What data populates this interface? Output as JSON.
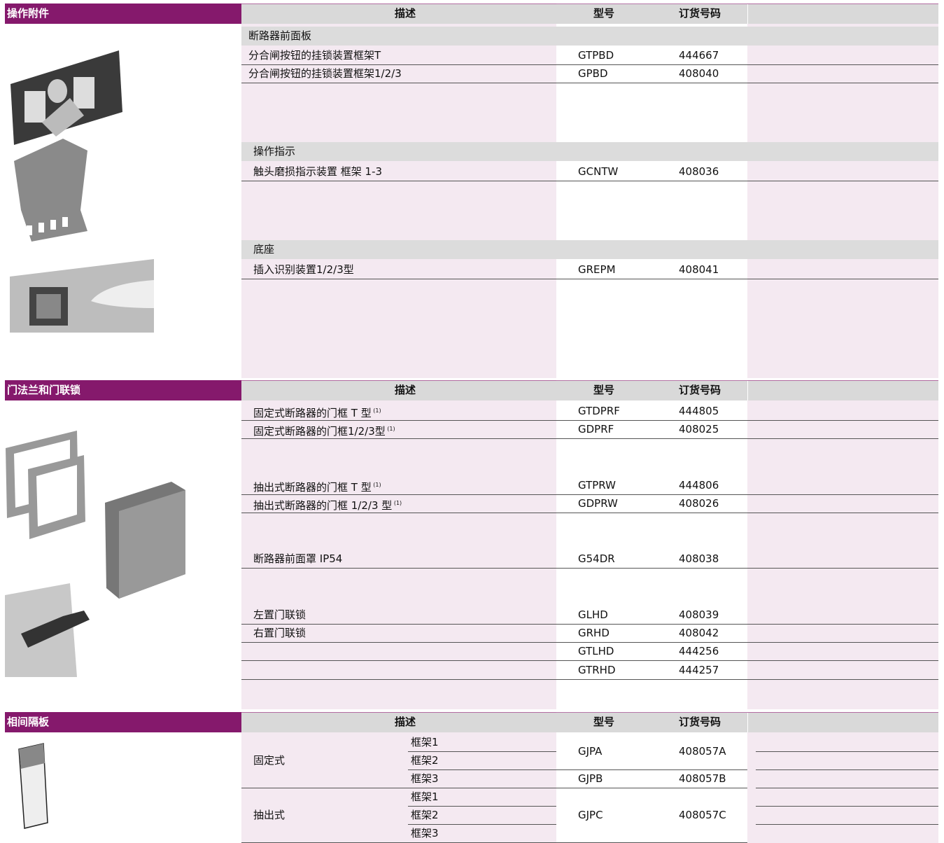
{
  "sections": [
    {
      "title": "操作附件",
      "header": {
        "description": "描述",
        "model": "型号",
        "order_no": "订货号码"
      },
      "groups": [
        {
          "name": "断路器前面板",
          "rows": [
            {
              "description": "分合闸按钮的挂锁装置框架T",
              "model": "GTPBD",
              "order_no": "444667"
            },
            {
              "description": "分合闸按钮的挂锁装置框架1/2/3",
              "model": "GPBD",
              "order_no": "408040"
            }
          ]
        },
        {
          "name": "操作指示",
          "rows": [
            {
              "description": "触头磨损指示装置 框架 1-3",
              "model": "GCNTW",
              "order_no": "408036"
            }
          ]
        },
        {
          "name": "底座",
          "rows": [
            {
              "description": "插入识别装置1/2/3型",
              "model": "GREPM",
              "order_no": "408041"
            }
          ]
        }
      ]
    },
    {
      "title": "门法兰和门联锁",
      "header": {
        "description": "描述",
        "model": "型号",
        "order_no": "订货号码"
      },
      "rows": [
        {
          "description": "固定式断路器的门框 T 型",
          "note": "(1)",
          "model": "GTDPRF",
          "order_no": "444805"
        },
        {
          "description": "固定式断路器的门框1/2/3型",
          "note": "(1)",
          "model": "GDPRF",
          "order_no": "408025"
        },
        {
          "description": "抽出式断路器的门框 T 型",
          "note": "(1)",
          "model": "GTPRW",
          "order_no": "444806"
        },
        {
          "description": "抽出式断路器的门框 1/2/3 型",
          "note": "(1)",
          "model": "GDPRW",
          "order_no": "408026"
        },
        {
          "description": "断路器前面罩 IP54",
          "model": "G54DR",
          "order_no": "408038"
        },
        {
          "description": "左置门联锁",
          "model": "GLHD",
          "order_no": "408039"
        },
        {
          "description": "右置门联锁",
          "model": "GRHD",
          "order_no": "408042"
        },
        {
          "model": "GTLHD",
          "order_no": "444256"
        },
        {
          "model": "GTRHD",
          "order_no": "444257"
        }
      ]
    },
    {
      "title": "相间隔板",
      "header": {
        "description": "描述",
        "model": "型号",
        "order_no": "订货号码"
      },
      "groups": [
        {
          "name": "固定式",
          "frames": [
            "框架1",
            "框架2",
            "框架3"
          ],
          "items": [
            {
              "model": "GJPA",
              "order_no": "408057A"
            },
            {
              "model": "GJPB",
              "order_no": "408057B"
            }
          ]
        },
        {
          "name": "抽出式",
          "frames": [
            "框架1",
            "框架2",
            "框架3"
          ],
          "items": [
            {
              "model": "GJPC",
              "order_no": "408057C"
            }
          ]
        }
      ]
    }
  ]
}
